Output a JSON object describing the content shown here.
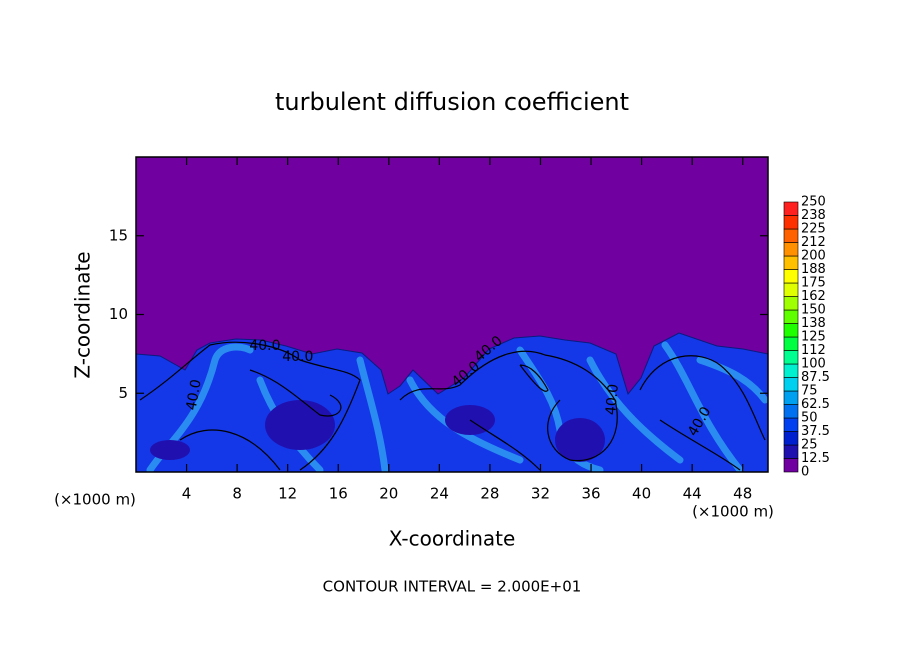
{
  "chart_data": {
    "type": "contour",
    "title": "turbulent diffusion coefficient",
    "x_label": "X-coordinate",
    "y_label": "Z-coordinate",
    "x_unit_left": "(×1000 m)",
    "x_unit_right": "(×1000 m)",
    "footer": "CONTOUR INTERVAL = 2.000E+01",
    "xlim": [
      0,
      50
    ],
    "ylim": [
      0,
      20
    ],
    "xticks": [
      4,
      8,
      12,
      16,
      20,
      24,
      28,
      32,
      36,
      40,
      44,
      48
    ],
    "yticks": [
      5,
      10,
      15
    ],
    "contour_labels": [
      {
        "value": 40,
        "label": "40.0",
        "x": 10.2,
        "y": 8.0
      },
      {
        "value": 40,
        "label": "40.0",
        "x": 12.8,
        "y": 7.3
      },
      {
        "value": 40,
        "label": "40.0",
        "x": 4.6,
        "y": 4.9
      },
      {
        "value": 40,
        "label": "40.0",
        "x": 26.1,
        "y": 6.2
      },
      {
        "value": 40,
        "label": "40.0",
        "x": 27.9,
        "y": 7.8
      },
      {
        "value": 40,
        "label": "40.0",
        "x": 37.7,
        "y": 4.6
      },
      {
        "value": 40,
        "label": "40.0",
        "x": 44.6,
        "y": 3.2
      }
    ],
    "colorbar": {
      "levels": [
        0,
        12.5,
        25,
        37.5,
        50,
        62.5,
        75,
        87.5,
        100,
        112,
        125,
        138,
        150,
        162,
        175,
        188,
        200,
        212,
        225,
        238,
        250
      ],
      "colors": [
        "#7000a0",
        "#2010b0",
        "#0020d0",
        "#0040f0",
        "#0070f0",
        "#00a0f0",
        "#00d0f0",
        "#00f0d0",
        "#00ff90",
        "#00ff40",
        "#20ff00",
        "#60ff00",
        "#a0ff00",
        "#e0ff00",
        "#ffff00",
        "#ffc000",
        "#ff9000",
        "#ff6000",
        "#ff3000",
        "#ff2020"
      ]
    }
  }
}
